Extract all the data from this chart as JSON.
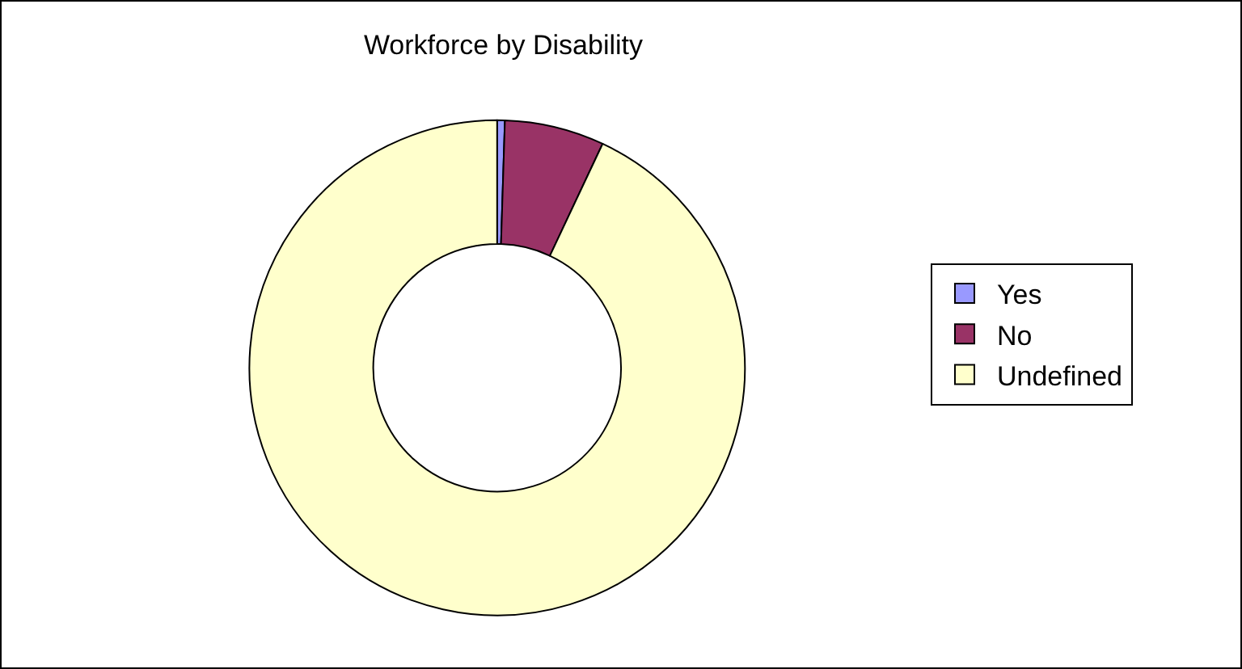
{
  "chart_data": {
    "type": "donut",
    "title": "Workforce by Disability",
    "categories": [
      "Yes",
      "No",
      "Undefined"
    ],
    "values": [
      0.5,
      6.5,
      93
    ],
    "colors": [
      "#9999ff",
      "#993366",
      "#ffffcc"
    ],
    "legend": "right"
  }
}
